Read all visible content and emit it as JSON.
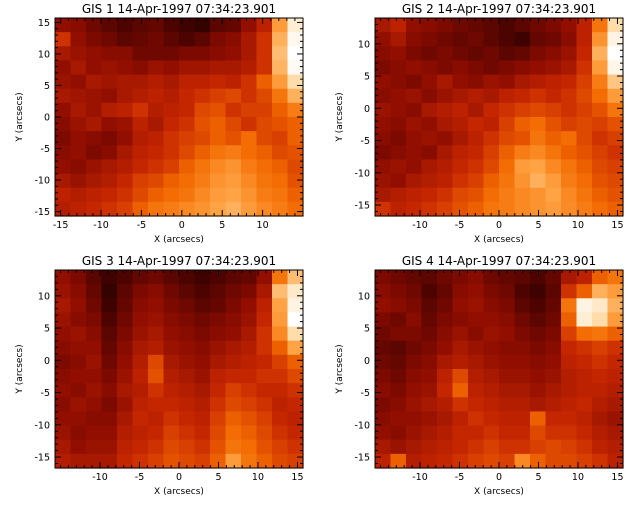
{
  "page_background": "#ffffff",
  "colormap": {
    "name": "red-temperature",
    "stops": [
      "#000000",
      "#4a0400",
      "#8c0c00",
      "#c82800",
      "#f36a00",
      "#ffa040",
      "#ffe0b0",
      "#ffffff"
    ]
  },
  "chart_data": [
    {
      "type": "heatmap",
      "title": "GIS 1 14-Apr-1997 07:34:23.901",
      "xlabel": "X (arcsecs)",
      "ylabel": "Y (arcsecs)",
      "xlim": [
        -15.7,
        15.0
      ],
      "ylim": [
        -15.7,
        15.7
      ],
      "xticks": [
        -15,
        -10,
        -5,
        0,
        5,
        10
      ],
      "yticks": [
        -15,
        -10,
        -5,
        0,
        5,
        10,
        15
      ],
      "intensity_range": [
        0,
        1
      ],
      "z": [
        [
          0.3,
          0.28,
          0.22,
          0.18,
          0.15,
          0.18,
          0.2,
          0.15,
          0.12,
          0.1,
          0.18,
          0.2,
          0.3,
          0.4,
          0.7,
          0.92
        ],
        [
          0.45,
          0.3,
          0.25,
          0.22,
          0.18,
          0.2,
          0.22,
          0.18,
          0.15,
          0.18,
          0.25,
          0.28,
          0.35,
          0.45,
          0.75,
          0.97
        ],
        [
          0.35,
          0.32,
          0.3,
          0.28,
          0.28,
          0.22,
          0.22,
          0.22,
          0.25,
          0.25,
          0.28,
          0.3,
          0.35,
          0.45,
          0.78,
          1.0
        ],
        [
          0.3,
          0.35,
          0.3,
          0.32,
          0.3,
          0.28,
          0.32,
          0.3,
          0.33,
          0.33,
          0.35,
          0.35,
          0.38,
          0.45,
          0.76,
          0.98
        ],
        [
          0.32,
          0.3,
          0.35,
          0.33,
          0.35,
          0.35,
          0.38,
          0.35,
          0.4,
          0.4,
          0.42,
          0.4,
          0.45,
          0.55,
          0.7,
          0.85
        ],
        [
          0.35,
          0.33,
          0.32,
          0.3,
          0.35,
          0.38,
          0.4,
          0.38,
          0.42,
          0.45,
          0.48,
          0.5,
          0.45,
          0.5,
          0.6,
          0.75
        ],
        [
          0.3,
          0.35,
          0.32,
          0.38,
          0.4,
          0.45,
          0.38,
          0.4,
          0.42,
          0.5,
          0.52,
          0.45,
          0.48,
          0.48,
          0.55,
          0.62
        ],
        [
          0.28,
          0.32,
          0.35,
          0.3,
          0.32,
          0.4,
          0.35,
          0.42,
          0.45,
          0.52,
          0.55,
          0.5,
          0.45,
          0.5,
          0.52,
          0.55
        ],
        [
          0.25,
          0.3,
          0.28,
          0.25,
          0.3,
          0.38,
          0.4,
          0.45,
          0.48,
          0.5,
          0.55,
          0.52,
          0.58,
          0.5,
          0.48,
          0.55
        ],
        [
          0.28,
          0.3,
          0.25,
          0.28,
          0.35,
          0.4,
          0.42,
          0.45,
          0.5,
          0.55,
          0.6,
          0.62,
          0.58,
          0.55,
          0.5,
          0.52
        ],
        [
          0.3,
          0.28,
          0.32,
          0.35,
          0.38,
          0.42,
          0.45,
          0.48,
          0.55,
          0.6,
          0.65,
          0.68,
          0.62,
          0.58,
          0.55,
          0.5
        ],
        [
          0.35,
          0.32,
          0.35,
          0.38,
          0.42,
          0.48,
          0.5,
          0.55,
          0.58,
          0.62,
          0.68,
          0.7,
          0.65,
          0.6,
          0.58,
          0.52
        ],
        [
          0.4,
          0.38,
          0.4,
          0.42,
          0.45,
          0.5,
          0.55,
          0.58,
          0.6,
          0.65,
          0.7,
          0.72,
          0.68,
          0.62,
          0.6,
          0.55
        ],
        [
          0.38,
          0.4,
          0.42,
          0.45,
          0.48,
          0.55,
          0.6,
          0.62,
          0.65,
          0.68,
          0.72,
          0.75,
          0.7,
          0.65,
          0.62,
          0.58
        ]
      ]
    },
    {
      "type": "heatmap",
      "title": "GIS 2 14-Apr-1997 07:34:23.901",
      "xlabel": "X (arcsecs)",
      "ylabel": "Y (arcsecs)",
      "xlim": [
        -15.7,
        15.7
      ],
      "ylim": [
        -16.7,
        14.0
      ],
      "xticks": [
        -10,
        -5,
        0,
        5,
        10,
        15
      ],
      "yticks": [
        -15,
        -10,
        -5,
        0,
        5,
        10
      ],
      "intensity_range": [
        0,
        1
      ],
      "z": [
        [
          0.35,
          0.4,
          0.3,
          0.28,
          0.25,
          0.22,
          0.2,
          0.18,
          0.15,
          0.18,
          0.22,
          0.25,
          0.3,
          0.4,
          0.6,
          0.85
        ],
        [
          0.3,
          0.35,
          0.28,
          0.25,
          0.22,
          0.2,
          0.22,
          0.18,
          0.15,
          0.12,
          0.2,
          0.22,
          0.28,
          0.4,
          0.68,
          0.95
        ],
        [
          0.28,
          0.3,
          0.25,
          0.22,
          0.25,
          0.22,
          0.2,
          0.22,
          0.18,
          0.2,
          0.25,
          0.28,
          0.32,
          0.42,
          0.75,
          1.0
        ],
        [
          0.25,
          0.28,
          0.3,
          0.28,
          0.25,
          0.28,
          0.25,
          0.22,
          0.25,
          0.28,
          0.3,
          0.32,
          0.35,
          0.45,
          0.7,
          0.96
        ],
        [
          0.3,
          0.28,
          0.25,
          0.3,
          0.35,
          0.3,
          0.28,
          0.32,
          0.3,
          0.35,
          0.38,
          0.4,
          0.42,
          0.48,
          0.62,
          0.8
        ],
        [
          0.28,
          0.3,
          0.32,
          0.28,
          0.32,
          0.35,
          0.38,
          0.35,
          0.4,
          0.42,
          0.45,
          0.42,
          0.45,
          0.5,
          0.58,
          0.7
        ],
        [
          0.32,
          0.3,
          0.28,
          0.35,
          0.38,
          0.4,
          0.35,
          0.42,
          0.45,
          0.48,
          0.5,
          0.48,
          0.45,
          0.48,
          0.52,
          0.6
        ],
        [
          0.3,
          0.28,
          0.32,
          0.3,
          0.35,
          0.38,
          0.42,
          0.4,
          0.48,
          0.55,
          0.58,
          0.52,
          0.48,
          0.5,
          0.48,
          0.52
        ],
        [
          0.28,
          0.25,
          0.3,
          0.32,
          0.3,
          0.35,
          0.4,
          0.45,
          0.5,
          0.52,
          0.6,
          0.55,
          0.58,
          0.5,
          0.45,
          0.48
        ],
        [
          0.25,
          0.28,
          0.3,
          0.28,
          0.35,
          0.4,
          0.42,
          0.48,
          0.55,
          0.62,
          0.65,
          0.6,
          0.55,
          0.52,
          0.48,
          0.45
        ],
        [
          0.3,
          0.32,
          0.3,
          0.35,
          0.38,
          0.42,
          0.45,
          0.5,
          0.58,
          0.7,
          0.72,
          0.65,
          0.6,
          0.55,
          0.5,
          0.48
        ],
        [
          0.32,
          0.3,
          0.35,
          0.38,
          0.4,
          0.45,
          0.48,
          0.55,
          0.6,
          0.68,
          0.75,
          0.7,
          0.62,
          0.58,
          0.52,
          0.5
        ],
        [
          0.35,
          0.38,
          0.4,
          0.42,
          0.45,
          0.5,
          0.52,
          0.58,
          0.62,
          0.65,
          0.68,
          0.72,
          0.65,
          0.6,
          0.55,
          0.52
        ],
        [
          0.45,
          0.4,
          0.42,
          0.45,
          0.48,
          0.52,
          0.55,
          0.6,
          0.62,
          0.65,
          0.68,
          0.7,
          0.66,
          0.62,
          0.58,
          0.55
        ]
      ]
    },
    {
      "type": "heatmap",
      "title": "GIS 3 14-Apr-1997 07:34:23.901",
      "xlabel": "X (arcsecs)",
      "ylabel": "Y (arcsecs)",
      "xlim": [
        -15.7,
        15.7
      ],
      "ylim": [
        -16.7,
        14.0
      ],
      "xticks": [
        -10,
        -5,
        0,
        5,
        10,
        15
      ],
      "yticks": [
        -15,
        -10,
        -5,
        0,
        5,
        10
      ],
      "intensity_range": [
        0,
        1
      ],
      "z": [
        [
          0.3,
          0.25,
          0.18,
          0.12,
          0.15,
          0.2,
          0.22,
          0.18,
          0.15,
          0.12,
          0.15,
          0.18,
          0.2,
          0.3,
          0.6,
          0.78
        ],
        [
          0.32,
          0.28,
          0.2,
          0.1,
          0.18,
          0.25,
          0.28,
          0.22,
          0.18,
          0.15,
          0.18,
          0.22,
          0.25,
          0.35,
          0.78,
          0.9
        ],
        [
          0.35,
          0.3,
          0.22,
          0.12,
          0.2,
          0.28,
          0.3,
          0.25,
          0.22,
          0.18,
          0.2,
          0.25,
          0.3,
          0.4,
          0.72,
          0.95
        ],
        [
          0.32,
          0.28,
          0.25,
          0.15,
          0.22,
          0.3,
          0.32,
          0.28,
          0.25,
          0.22,
          0.25,
          0.28,
          0.32,
          0.42,
          0.7,
          1.0
        ],
        [
          0.3,
          0.32,
          0.28,
          0.18,
          0.25,
          0.32,
          0.35,
          0.3,
          0.28,
          0.25,
          0.28,
          0.3,
          0.35,
          0.45,
          0.65,
          0.85
        ],
        [
          0.28,
          0.3,
          0.3,
          0.2,
          0.28,
          0.35,
          0.38,
          0.32,
          0.3,
          0.28,
          0.32,
          0.35,
          0.38,
          0.45,
          0.55,
          0.72
        ],
        [
          0.25,
          0.28,
          0.32,
          0.22,
          0.3,
          0.38,
          0.5,
          0.35,
          0.32,
          0.3,
          0.35,
          0.38,
          0.4,
          0.42,
          0.48,
          0.55
        ],
        [
          0.28,
          0.3,
          0.3,
          0.25,
          0.32,
          0.4,
          0.52,
          0.38,
          0.35,
          0.32,
          0.4,
          0.42,
          0.42,
          0.45,
          0.45,
          0.5
        ],
        [
          0.3,
          0.28,
          0.32,
          0.28,
          0.35,
          0.38,
          0.45,
          0.4,
          0.38,
          0.35,
          0.42,
          0.48,
          0.45,
          0.42,
          0.42,
          0.45
        ],
        [
          0.28,
          0.32,
          0.3,
          0.25,
          0.32,
          0.4,
          0.42,
          0.42,
          0.4,
          0.38,
          0.45,
          0.5,
          0.48,
          0.45,
          0.4,
          0.42
        ],
        [
          0.3,
          0.3,
          0.28,
          0.28,
          0.35,
          0.42,
          0.4,
          0.45,
          0.42,
          0.4,
          0.48,
          0.55,
          0.52,
          0.48,
          0.42,
          0.4
        ],
        [
          0.32,
          0.28,
          0.3,
          0.3,
          0.38,
          0.4,
          0.42,
          0.48,
          0.45,
          0.42,
          0.5,
          0.58,
          0.55,
          0.5,
          0.45,
          0.42
        ],
        [
          0.35,
          0.3,
          0.32,
          0.32,
          0.4,
          0.42,
          0.45,
          0.5,
          0.48,
          0.45,
          0.52,
          0.6,
          0.58,
          0.52,
          0.48,
          0.45
        ],
        [
          0.38,
          0.35,
          0.35,
          0.35,
          0.42,
          0.45,
          0.48,
          0.52,
          0.5,
          0.48,
          0.55,
          0.7,
          0.6,
          0.55,
          0.5,
          0.48
        ]
      ]
    },
    {
      "type": "heatmap",
      "title": "GIS 4 14-Apr-1997 07:34:23.901",
      "xlabel": "X (arcsecs)",
      "ylabel": "Y (arcsecs)",
      "xlim": [
        -15.7,
        15.7
      ],
      "ylim": [
        -16.7,
        14.0
      ],
      "xticks": [
        -10,
        -5,
        0,
        5,
        10,
        15
      ],
      "yticks": [
        -15,
        -10,
        -5,
        0,
        5,
        10
      ],
      "intensity_range": [
        0,
        1
      ],
      "z": [
        [
          0.25,
          0.22,
          0.2,
          0.18,
          0.22,
          0.25,
          0.28,
          0.22,
          0.2,
          0.18,
          0.15,
          0.2,
          0.35,
          0.4,
          0.55,
          0.6
        ],
        [
          0.28,
          0.25,
          0.22,
          0.15,
          0.2,
          0.28,
          0.3,
          0.25,
          0.22,
          0.15,
          0.12,
          0.18,
          0.45,
          0.55,
          0.75,
          0.7
        ],
        [
          0.3,
          0.28,
          0.25,
          0.18,
          0.22,
          0.3,
          0.32,
          0.28,
          0.25,
          0.18,
          0.15,
          0.2,
          0.6,
          0.95,
          0.9,
          0.75
        ],
        [
          0.25,
          0.22,
          0.28,
          0.2,
          0.25,
          0.28,
          0.3,
          0.3,
          0.28,
          0.22,
          0.18,
          0.22,
          0.55,
          0.92,
          0.85,
          0.7
        ],
        [
          0.22,
          0.25,
          0.25,
          0.22,
          0.28,
          0.32,
          0.28,
          0.32,
          0.3,
          0.25,
          0.22,
          0.25,
          0.48,
          0.58,
          0.6,
          0.55
        ],
        [
          0.2,
          0.18,
          0.22,
          0.25,
          0.3,
          0.35,
          0.32,
          0.3,
          0.28,
          0.28,
          0.25,
          0.28,
          0.42,
          0.45,
          0.48,
          0.45
        ],
        [
          0.22,
          0.2,
          0.25,
          0.28,
          0.35,
          0.38,
          0.35,
          0.32,
          0.3,
          0.3,
          0.28,
          0.3,
          0.4,
          0.42,
          0.45,
          0.42
        ],
        [
          0.25,
          0.22,
          0.28,
          0.3,
          0.4,
          0.5,
          0.38,
          0.35,
          0.32,
          0.32,
          0.3,
          0.32,
          0.38,
          0.4,
          0.42,
          0.4
        ],
        [
          0.28,
          0.25,
          0.3,
          0.32,
          0.42,
          0.55,
          0.4,
          0.38,
          0.35,
          0.35,
          0.32,
          0.35,
          0.38,
          0.4,
          0.4,
          0.38
        ],
        [
          0.25,
          0.28,
          0.32,
          0.35,
          0.38,
          0.45,
          0.42,
          0.4,
          0.38,
          0.38,
          0.35,
          0.38,
          0.4,
          0.42,
          0.38,
          0.35
        ],
        [
          0.28,
          0.3,
          0.3,
          0.32,
          0.35,
          0.4,
          0.45,
          0.42,
          0.4,
          0.4,
          0.55,
          0.42,
          0.42,
          0.4,
          0.35,
          0.32
        ],
        [
          0.3,
          0.28,
          0.32,
          0.35,
          0.38,
          0.42,
          0.42,
          0.45,
          0.42,
          0.42,
          0.5,
          0.45,
          0.45,
          0.42,
          0.38,
          0.35
        ],
        [
          0.35,
          0.32,
          0.35,
          0.38,
          0.4,
          0.42,
          0.45,
          0.48,
          0.45,
          0.45,
          0.48,
          0.5,
          0.48,
          0.45,
          0.4,
          0.38
        ],
        [
          0.4,
          0.55,
          0.38,
          0.4,
          0.42,
          0.45,
          0.48,
          0.5,
          0.48,
          0.65,
          0.55,
          0.5,
          0.5,
          0.48,
          0.45,
          0.4
        ]
      ]
    }
  ]
}
